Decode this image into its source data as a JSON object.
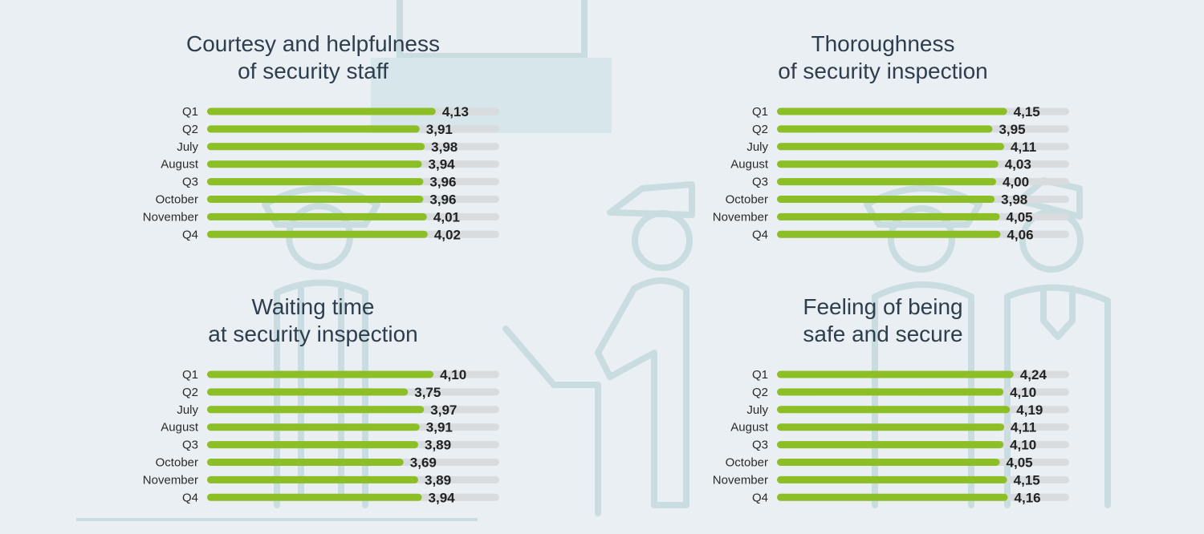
{
  "colors": {
    "background": "#e9eff2",
    "bar": "#8cbf26",
    "track": "#d8dcde",
    "title": "#2e3e4e",
    "illustration": "#c9dde0"
  },
  "chart_data": [
    {
      "type": "bar",
      "orientation": "horizontal",
      "title_lines": [
        "Courtesy and helpfulness",
        "of security staff"
      ],
      "categories": [
        "Q1",
        "Q2",
        "July",
        "August",
        "Q3",
        "October",
        "November",
        "Q4"
      ],
      "values": [
        4.13,
        3.91,
        3.98,
        3.94,
        3.96,
        3.96,
        4.01,
        4.02
      ],
      "value_labels": [
        "4,13",
        "3,91",
        "3,98",
        "3,94",
        "3,96",
        "3,96",
        "4,01",
        "4,02"
      ],
      "xlim": [
        1,
        5
      ]
    },
    {
      "type": "bar",
      "orientation": "horizontal",
      "title_lines": [
        "Thoroughness",
        "of security inspection"
      ],
      "categories": [
        "Q1",
        "Q2",
        "July",
        "August",
        "Q3",
        "October",
        "November",
        "Q4"
      ],
      "values": [
        4.15,
        3.95,
        4.11,
        4.03,
        4.0,
        3.98,
        4.05,
        4.06
      ],
      "value_labels": [
        "4,15",
        "3,95",
        "4,11",
        "4,03",
        "4,00",
        "3,98",
        "4,05",
        "4,06"
      ],
      "xlim": [
        1,
        5
      ]
    },
    {
      "type": "bar",
      "orientation": "horizontal",
      "title_lines": [
        "Waiting time",
        "at security inspection"
      ],
      "categories": [
        "Q1",
        "Q2",
        "July",
        "August",
        "Q3",
        "October",
        "November",
        "Q4"
      ],
      "values": [
        4.1,
        3.75,
        3.97,
        3.91,
        3.89,
        3.69,
        3.89,
        3.94
      ],
      "value_labels": [
        "4,10",
        "3,75",
        "3,97",
        "3,91",
        "3,89",
        "3,69",
        "3,89",
        "3,94"
      ],
      "xlim": [
        1,
        5
      ]
    },
    {
      "type": "bar",
      "orientation": "horizontal",
      "title_lines": [
        "Feeling of being",
        "safe and secure"
      ],
      "categories": [
        "Q1",
        "Q2",
        "July",
        "August",
        "Q3",
        "October",
        "November",
        "Q4"
      ],
      "values": [
        4.24,
        4.1,
        4.19,
        4.11,
        4.1,
        4.05,
        4.15,
        4.16
      ],
      "value_labels": [
        "4,24",
        "4,10",
        "4,19",
        "4,11",
        "4,10",
        "4,05",
        "4,15",
        "4,16"
      ],
      "xlim": [
        1,
        5
      ]
    }
  ]
}
